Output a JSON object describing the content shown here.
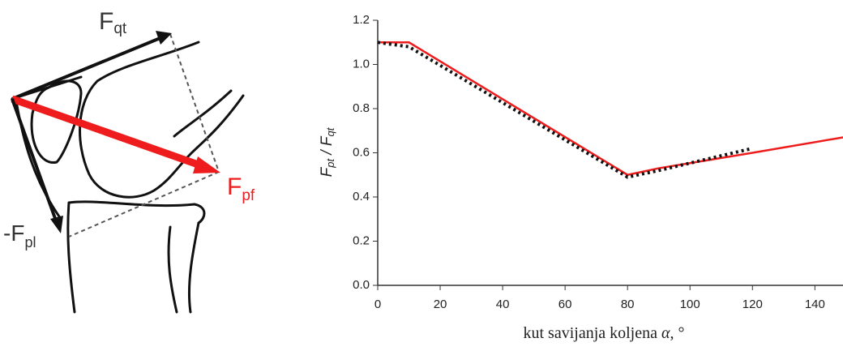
{
  "diagram": {
    "labels": [
      {
        "main": "F",
        "sub": "qt"
      },
      {
        "main": "F",
        "sub": "pf"
      },
      {
        "main": "-F",
        "sub": "pl"
      }
    ]
  },
  "chart_data": {
    "type": "line",
    "ylabel_parts": [
      "F",
      "pt",
      " / F",
      "qt"
    ],
    "xlabel_parts": [
      "kut savijanja koljena ",
      "α",
      ", °"
    ],
    "series": [
      {
        "color": "#ee1c1c",
        "style": "solid",
        "x": [
          0,
          10,
          80,
          90,
          120,
          149
        ],
        "values": [
          1.1,
          1.1,
          0.5,
          0.53,
          0.6,
          0.67
        ]
      },
      {
        "color": "#111111",
        "style": "dotted",
        "x": [
          0,
          10,
          80,
          90,
          120
        ],
        "values": [
          1.1,
          1.08,
          0.49,
          0.52,
          0.62
        ]
      }
    ],
    "xlim": [
      0,
      149
    ],
    "xticks": [
      0,
      20,
      40,
      60,
      80,
      100,
      120,
      140
    ],
    "ylim": [
      0,
      1.2
    ],
    "yticks": [
      {
        "value": 0,
        "label": "0.0"
      },
      0.2,
      0.4,
      0.6,
      0.8,
      {
        "value": 1,
        "label": "1.0"
      },
      1.2
    ]
  }
}
